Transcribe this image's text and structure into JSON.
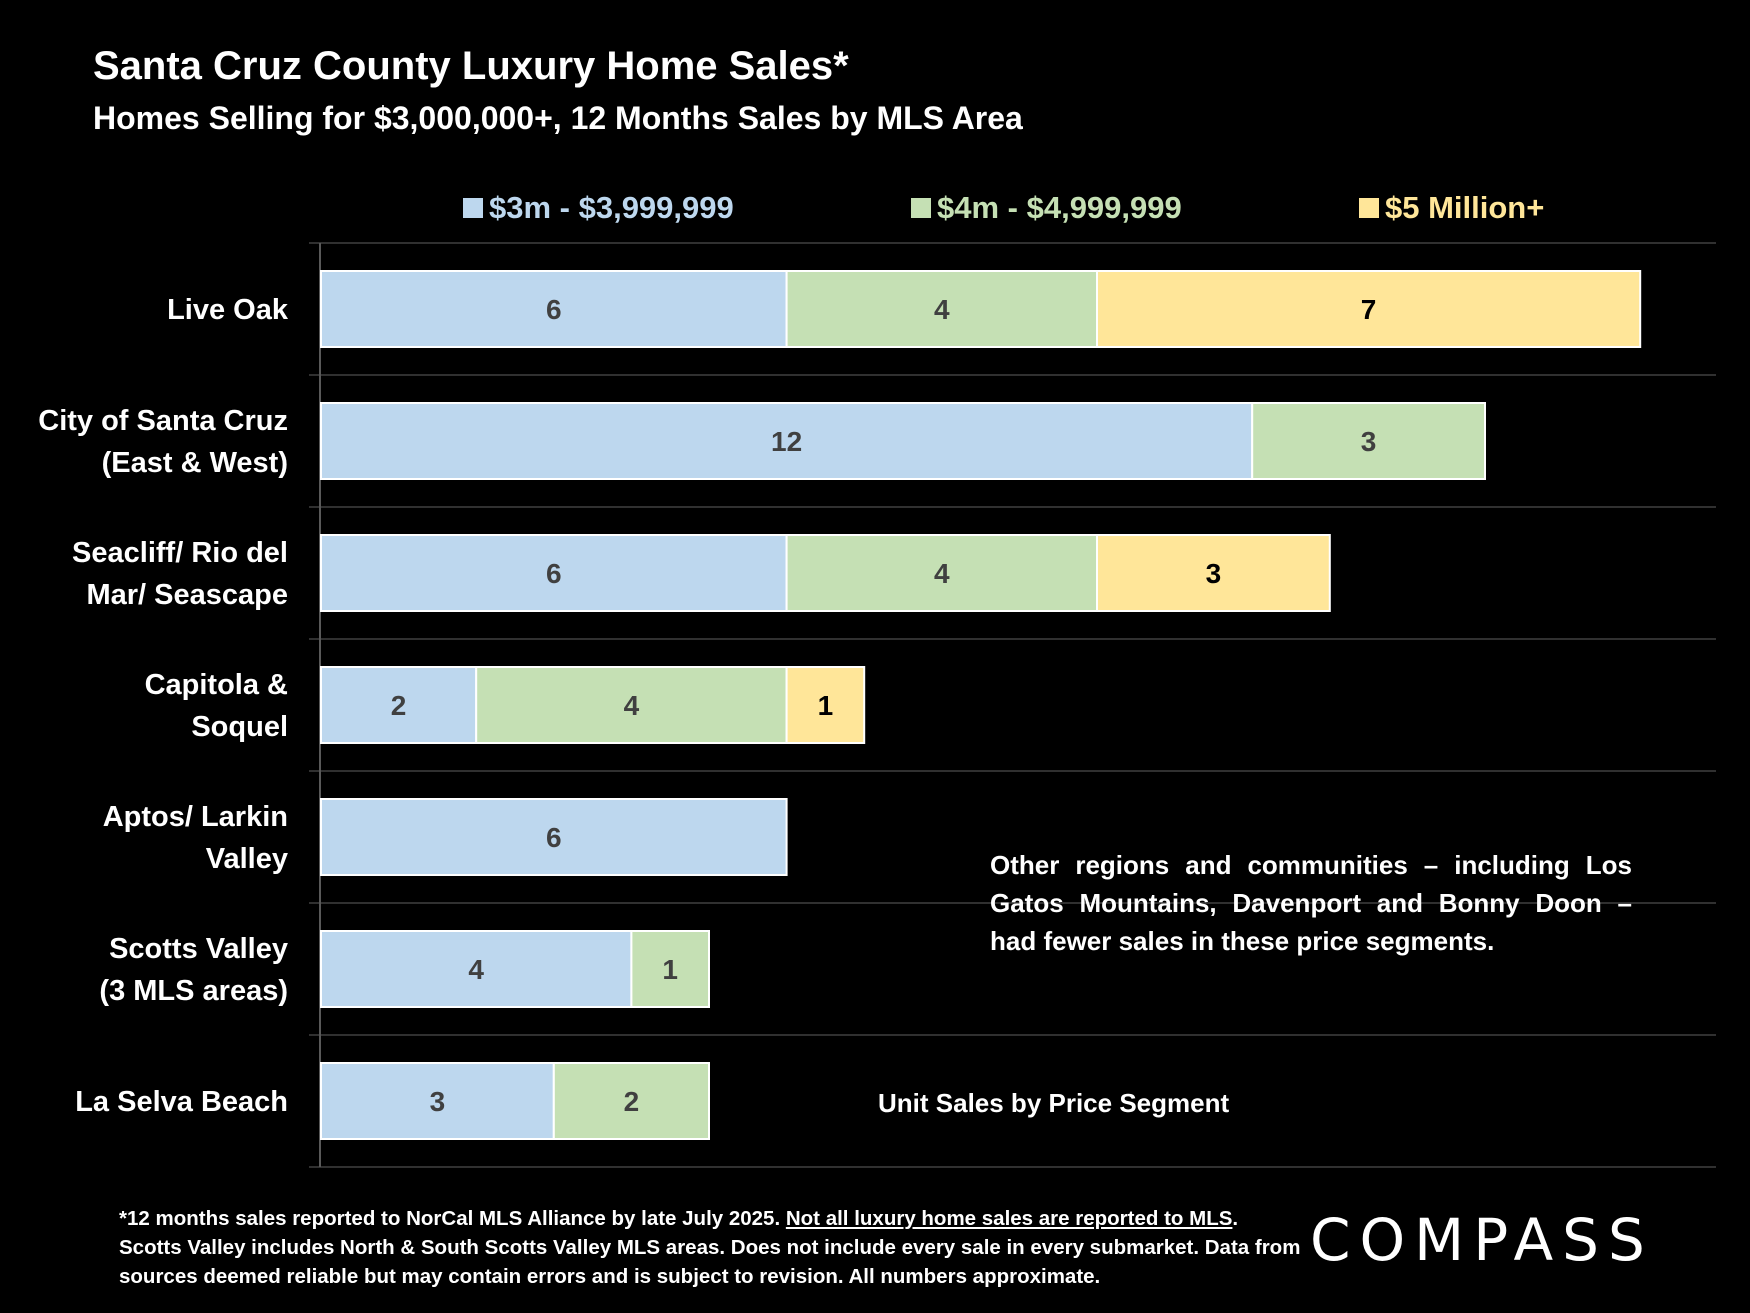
{
  "chart_data": {
    "type": "bar",
    "orientation": "horizontal",
    "stacked": true,
    "title": "Santa Cruz County Luxury Home Sales*",
    "subtitle": "Homes Selling for $3,000,000+, 12 Months Sales by MLS Area",
    "xlabel": "Unit Sales by Price Segment",
    "categories": [
      [
        "Live Oak"
      ],
      [
        "City of Santa Cruz",
        "(East & West)"
      ],
      [
        "Seacliff/ Rio del",
        "Mar/ Seascape"
      ],
      [
        "Capitola &",
        "Soquel"
      ],
      [
        "Aptos/ Larkin",
        "Valley"
      ],
      [
        "Scotts Valley",
        "(3 MLS areas)"
      ],
      [
        "La Selva Beach"
      ]
    ],
    "series": [
      {
        "name": "$3m - $3,999,999",
        "color": "#bdd7ee",
        "label_color": "#404040",
        "values": [
          6,
          12,
          6,
          2,
          6,
          4,
          3
        ]
      },
      {
        "name": "$4m - $4,999,999",
        "color": "#c5e0b4",
        "label_color": "#404040",
        "values": [
          4,
          3,
          4,
          4,
          null,
          1,
          2
        ]
      },
      {
        "name": "$5 Million+",
        "color": "#ffe699",
        "label_color": "#000000",
        "values": [
          7,
          null,
          3,
          1,
          null,
          null,
          null
        ]
      }
    ],
    "xlim": [
      0,
      17
    ],
    "grid": true,
    "legend_position": "top"
  },
  "annotation": "Other regions and communities – including Los Gatos Mountains, Davenport and Bonny Doon – had fewer sales in these price segments.",
  "footnote": {
    "part1": "*12 months  sales reported to NorCal MLS Alliance by late July 2025. ",
    "underlined": "Not all luxury home sales are reported to MLS",
    "part2": ". Scotts Valley includes North & South Scotts Valley MLS areas. Does not include every sale in every submarket. Data from sources deemed reliable but may contain errors and is subject to revision. All numbers approximate."
  },
  "logo": "COMPASS"
}
